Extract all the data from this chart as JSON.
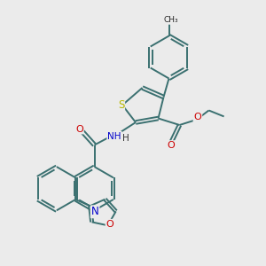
{
  "bg_color": "#ebebeb",
  "bond_color": "#3a7070",
  "bond_width": 1.4,
  "S_color": "#b8b800",
  "N_color": "#0000cc",
  "O_color": "#cc0000",
  "figsize": [
    3.0,
    3.0
  ],
  "dpi": 100,
  "xlim": [
    0,
    10
  ],
  "ylim": [
    0,
    10
  ]
}
